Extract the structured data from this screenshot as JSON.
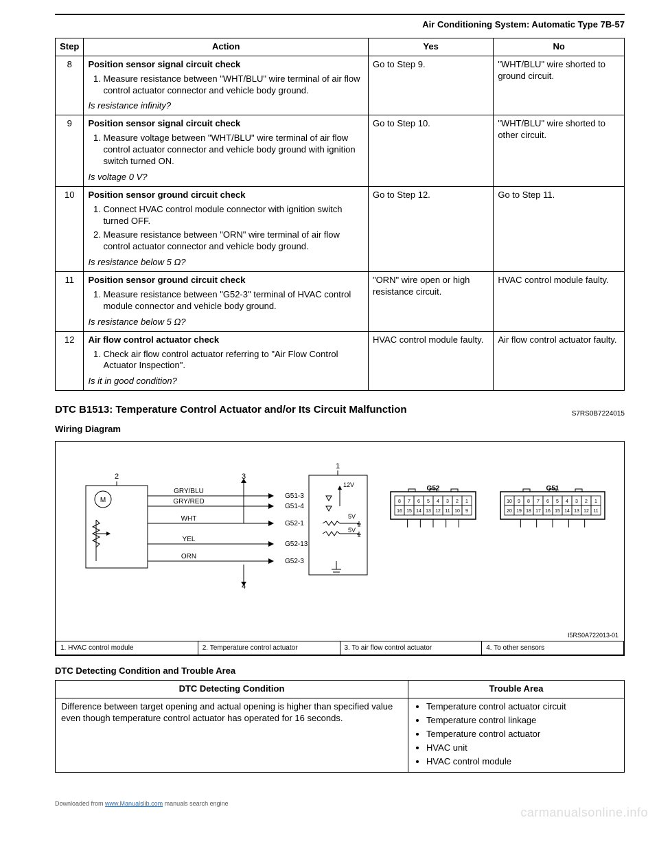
{
  "page": {
    "header": "Air Conditioning System: Automatic Type   7B-57"
  },
  "diag_table": {
    "headers": {
      "step": "Step",
      "action": "Action",
      "yes": "Yes",
      "no": "No"
    },
    "rows": [
      {
        "step": "8",
        "title": "Position sensor signal circuit check",
        "list": [
          "Measure resistance between \"WHT/BLU\" wire terminal of air flow control actuator connector and vehicle body ground."
        ],
        "question": "Is resistance infinity?",
        "yes": "Go to Step 9.",
        "no": "\"WHT/BLU\" wire shorted to ground circuit."
      },
      {
        "step": "9",
        "title": "Position sensor signal circuit check",
        "list": [
          "Measure voltage between \"WHT/BLU\" wire terminal of air flow control actuator connector and vehicle body ground with ignition switch turned ON."
        ],
        "question": "Is voltage 0 V?",
        "yes": "Go to Step 10.",
        "no": "\"WHT/BLU\" wire shorted to other circuit."
      },
      {
        "step": "10",
        "title": "Position sensor ground circuit check",
        "list": [
          "Connect HVAC control module connector with ignition switch turned OFF.",
          "Measure resistance between \"ORN\" wire terminal of air flow control actuator connector and vehicle body ground."
        ],
        "question": "Is resistance below 5 Ω?",
        "yes": "Go to Step 12.",
        "no": "Go to Step 11."
      },
      {
        "step": "11",
        "title": "Position sensor ground circuit check",
        "list": [
          "Measure resistance between \"G52-3\" terminal of HVAC control module connector and vehicle body ground."
        ],
        "question": "Is resistance below 5 Ω?",
        "yes": "\"ORN\" wire open or high resistance circuit.",
        "no": "HVAC control module faulty."
      },
      {
        "step": "12",
        "title": "Air flow control actuator check",
        "list": [
          "Check air flow control actuator referring to \"Air Flow Control Actuator Inspection\"."
        ],
        "question": "Is it in good condition?",
        "yes": "HVAC control module faulty.",
        "no": "Air flow control actuator faulty."
      }
    ]
  },
  "dtc": {
    "title": "DTC B1513: Temperature Control Actuator and/or Its Circuit Malfunction",
    "ref": "S7RS0B7224015",
    "wiring_label": "Wiring Diagram",
    "diagram_ref": "I5RS0A722013-01"
  },
  "wiring": {
    "callouts": {
      "c1": "1",
      "c2": "2",
      "c3": "3",
      "c4": "4"
    },
    "wires": [
      {
        "color": "GRY/BLU",
        "pin": "G51-3"
      },
      {
        "color": "GRY/RED",
        "pin": "G51-4"
      },
      {
        "color": "WHT",
        "pin": "G52-1"
      },
      {
        "color": "YEL",
        "pin": "G52-13"
      },
      {
        "color": "ORN",
        "pin": "G52-3"
      }
    ],
    "labels": {
      "v12": "12V",
      "v5a": "5V",
      "v5b": "5V",
      "M": "M"
    },
    "connectors": {
      "G52": {
        "label": "G52",
        "top": [
          "8",
          "7",
          "6",
          "5",
          "4",
          "3",
          "2",
          "1"
        ],
        "bottom": [
          "16",
          "15",
          "14",
          "13",
          "12",
          "11",
          "10",
          "9"
        ]
      },
      "G51": {
        "label": "G51",
        "top": [
          "10",
          "9",
          "8",
          "7",
          "6",
          "5",
          "4",
          "3",
          "2",
          "1"
        ],
        "bottom": [
          "20",
          "19",
          "18",
          "17",
          "16",
          "15",
          "14",
          "13",
          "12",
          "11"
        ]
      }
    }
  },
  "legend": {
    "i1": "1.   HVAC control module",
    "i2": "2.   Temperature control actuator",
    "i3": "3.   To air flow control actuator",
    "i4": "4.   To other sensors"
  },
  "dtc_cond": {
    "heading": "DTC Detecting Condition and Trouble Area",
    "col1": "DTC Detecting Condition",
    "col2": "Trouble Area",
    "condition": "Difference between target opening and actual opening is higher than specified value even though temperature control actuator has operated for 16 seconds.",
    "troubles": [
      "Temperature control actuator circuit",
      "Temperature control linkage",
      "Temperature control actuator",
      "HVAC unit",
      "HVAC control module"
    ]
  },
  "footer": {
    "prefix": "Downloaded from ",
    "link": "www.Manualslib.com",
    "suffix": " manuals search engine"
  },
  "watermark": "carmanualsonline.info"
}
